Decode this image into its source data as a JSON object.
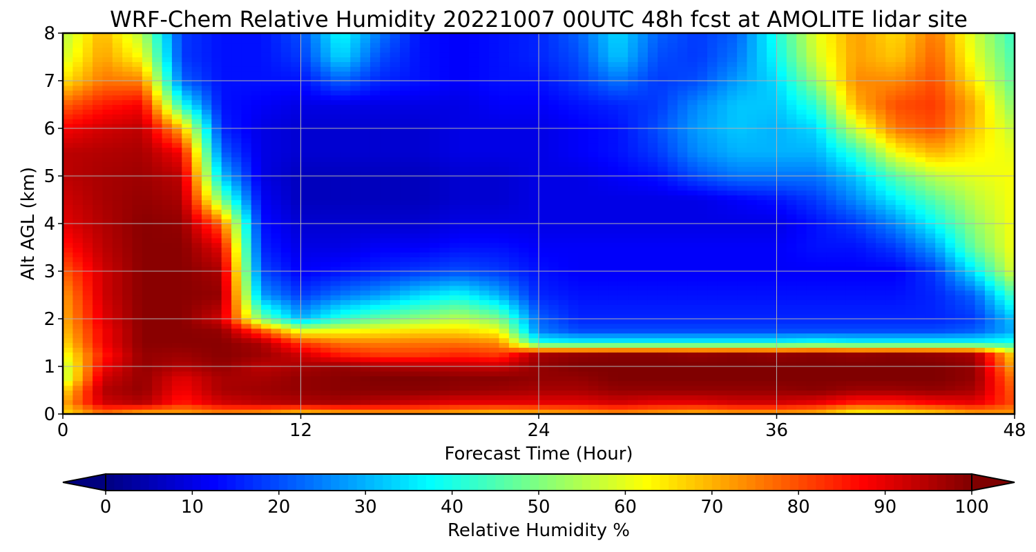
{
  "chart_data": {
    "type": "heatmap",
    "title": "WRF-Chem Relative Humidity 20221007 00UTC 48h fcst at AMOLITE lidar site",
    "xlabel": "Forecast Time (Hour)",
    "ylabel": "Alt AGL (km)",
    "xlim": [
      0,
      48
    ],
    "ylim": [
      0,
      8
    ],
    "xticks": [
      "0",
      "12",
      "24",
      "36",
      "48"
    ],
    "yticks": [
      "0",
      "1",
      "2",
      "3",
      "4",
      "5",
      "6",
      "7",
      "8"
    ],
    "grid": true,
    "colormap": "jet",
    "x_hours": [
      0,
      2,
      4,
      6,
      8,
      10,
      12,
      14,
      16,
      18,
      20,
      22,
      24,
      26,
      28,
      30,
      32,
      34,
      36,
      38,
      40,
      42,
      44,
      46,
      48
    ],
    "y_km": [
      0,
      0.25,
      0.5,
      0.75,
      1,
      1.25,
      1.5,
      1.75,
      2,
      2.5,
      3,
      3.5,
      4,
      4.5,
      5,
      5.5,
      6,
      6.5,
      7,
      7.5,
      8
    ],
    "values": [
      [
        65,
        75,
        68,
        70,
        72,
        70,
        65,
        68,
        70,
        70,
        68,
        66,
        68,
        70,
        72,
        70,
        68,
        70,
        70,
        68,
        60,
        62,
        65,
        70,
        72
      ],
      [
        70,
        92,
        95,
        85,
        92,
        94,
        95,
        96,
        94,
        92,
        90,
        90,
        90,
        90,
        92,
        90,
        90,
        92,
        92,
        90,
        85,
        85,
        88,
        90,
        80
      ],
      [
        65,
        95,
        98,
        88,
        96,
        97,
        98,
        99,
        99,
        99,
        98,
        97,
        96,
        96,
        98,
        98,
        98,
        98,
        98,
        99,
        97,
        97,
        98,
        96,
        78
      ],
      [
        55,
        92,
        98,
        90,
        96,
        96,
        98,
        99,
        100,
        100,
        99,
        99,
        98,
        98,
        100,
        100,
        100,
        100,
        100,
        100,
        100,
        100,
        100,
        98,
        75
      ],
      [
        55,
        88,
        98,
        95,
        98,
        94,
        96,
        98,
        96,
        95,
        94,
        93,
        98,
        100,
        100,
        100,
        100,
        100,
        100,
        100,
        100,
        100,
        100,
        98,
        70
      ],
      [
        60,
        85,
        98,
        97,
        99,
        97,
        92,
        85,
        82,
        82,
        84,
        82,
        96,
        98,
        99,
        99,
        98,
        99,
        98,
        99,
        98,
        99,
        98,
        96,
        65
      ],
      [
        65,
        88,
        99,
        99,
        99,
        96,
        82,
        76,
        75,
        76,
        76,
        74,
        40,
        38,
        38,
        38,
        38,
        38,
        38,
        40,
        38,
        38,
        38,
        38,
        40
      ],
      [
        68,
        88,
        99,
        99,
        98,
        80,
        60,
        62,
        64,
        66,
        66,
        62,
        25,
        20,
        20,
        20,
        20,
        20,
        20,
        20,
        20,
        20,
        20,
        22,
        30
      ],
      [
        70,
        90,
        99,
        99,
        92,
        50,
        30,
        42,
        48,
        52,
        56,
        50,
        22,
        16,
        16,
        16,
        16,
        16,
        16,
        16,
        16,
        16,
        16,
        18,
        32
      ],
      [
        72,
        92,
        99,
        99,
        98,
        28,
        18,
        24,
        28,
        34,
        38,
        30,
        16,
        14,
        14,
        14,
        14,
        14,
        14,
        14,
        14,
        14,
        16,
        22,
        45
      ],
      [
        78,
        92,
        99,
        99,
        96,
        20,
        12,
        14,
        16,
        18,
        20,
        18,
        14,
        12,
        12,
        12,
        12,
        12,
        12,
        12,
        12,
        12,
        18,
        36,
        60
      ],
      [
        85,
        94,
        99,
        99,
        90,
        16,
        10,
        10,
        12,
        12,
        14,
        14,
        12,
        12,
        12,
        12,
        12,
        12,
        12,
        14,
        14,
        18,
        28,
        48,
        62
      ],
      [
        90,
        95,
        99,
        98,
        78,
        14,
        8,
        8,
        8,
        8,
        10,
        10,
        10,
        10,
        10,
        10,
        10,
        10,
        10,
        14,
        18,
        26,
        38,
        52,
        62
      ],
      [
        92,
        96,
        98,
        96,
        50,
        12,
        6,
        6,
        6,
        6,
        8,
        8,
        10,
        10,
        10,
        10,
        10,
        12,
        14,
        18,
        26,
        36,
        46,
        56,
        62
      ],
      [
        94,
        96,
        97,
        94,
        32,
        10,
        6,
        6,
        6,
        6,
        8,
        8,
        10,
        10,
        12,
        14,
        20,
        24,
        24,
        24,
        32,
        46,
        56,
        60,
        62
      ],
      [
        94,
        95,
        96,
        88,
        22,
        10,
        8,
        8,
        8,
        8,
        10,
        10,
        10,
        12,
        14,
        18,
        26,
        30,
        30,
        30,
        42,
        62,
        70,
        64,
        60
      ],
      [
        88,
        92,
        94,
        70,
        16,
        10,
        8,
        8,
        8,
        8,
        10,
        10,
        10,
        12,
        14,
        20,
        28,
        32,
        30,
        34,
        58,
        76,
        80,
        68,
        56
      ],
      [
        78,
        85,
        88,
        40,
        14,
        12,
        10,
        10,
        10,
        10,
        10,
        12,
        12,
        14,
        16,
        18,
        26,
        32,
        32,
        42,
        70,
        80,
        82,
        70,
        50
      ],
      [
        65,
        76,
        75,
        22,
        14,
        14,
        14,
        22,
        16,
        14,
        12,
        14,
        14,
        18,
        24,
        18,
        20,
        28,
        34,
        52,
        74,
        74,
        80,
        64,
        46
      ],
      [
        58,
        72,
        62,
        18,
        14,
        14,
        18,
        34,
        20,
        14,
        12,
        14,
        16,
        20,
        32,
        20,
        18,
        24,
        38,
        58,
        72,
        68,
        78,
        60,
        44
      ],
      [
        55,
        70,
        55,
        18,
        14,
        14,
        20,
        38,
        24,
        14,
        12,
        14,
        16,
        22,
        34,
        22,
        18,
        22,
        40,
        60,
        72,
        66,
        76,
        58,
        42
      ]
    ],
    "colorbar": {
      "label": "Relative Humidity %",
      "ticks": [
        "0",
        "10",
        "20",
        "30",
        "40",
        "50",
        "60",
        "70",
        "80",
        "90",
        "100"
      ],
      "range": [
        0,
        100
      ],
      "extend": "both"
    }
  }
}
